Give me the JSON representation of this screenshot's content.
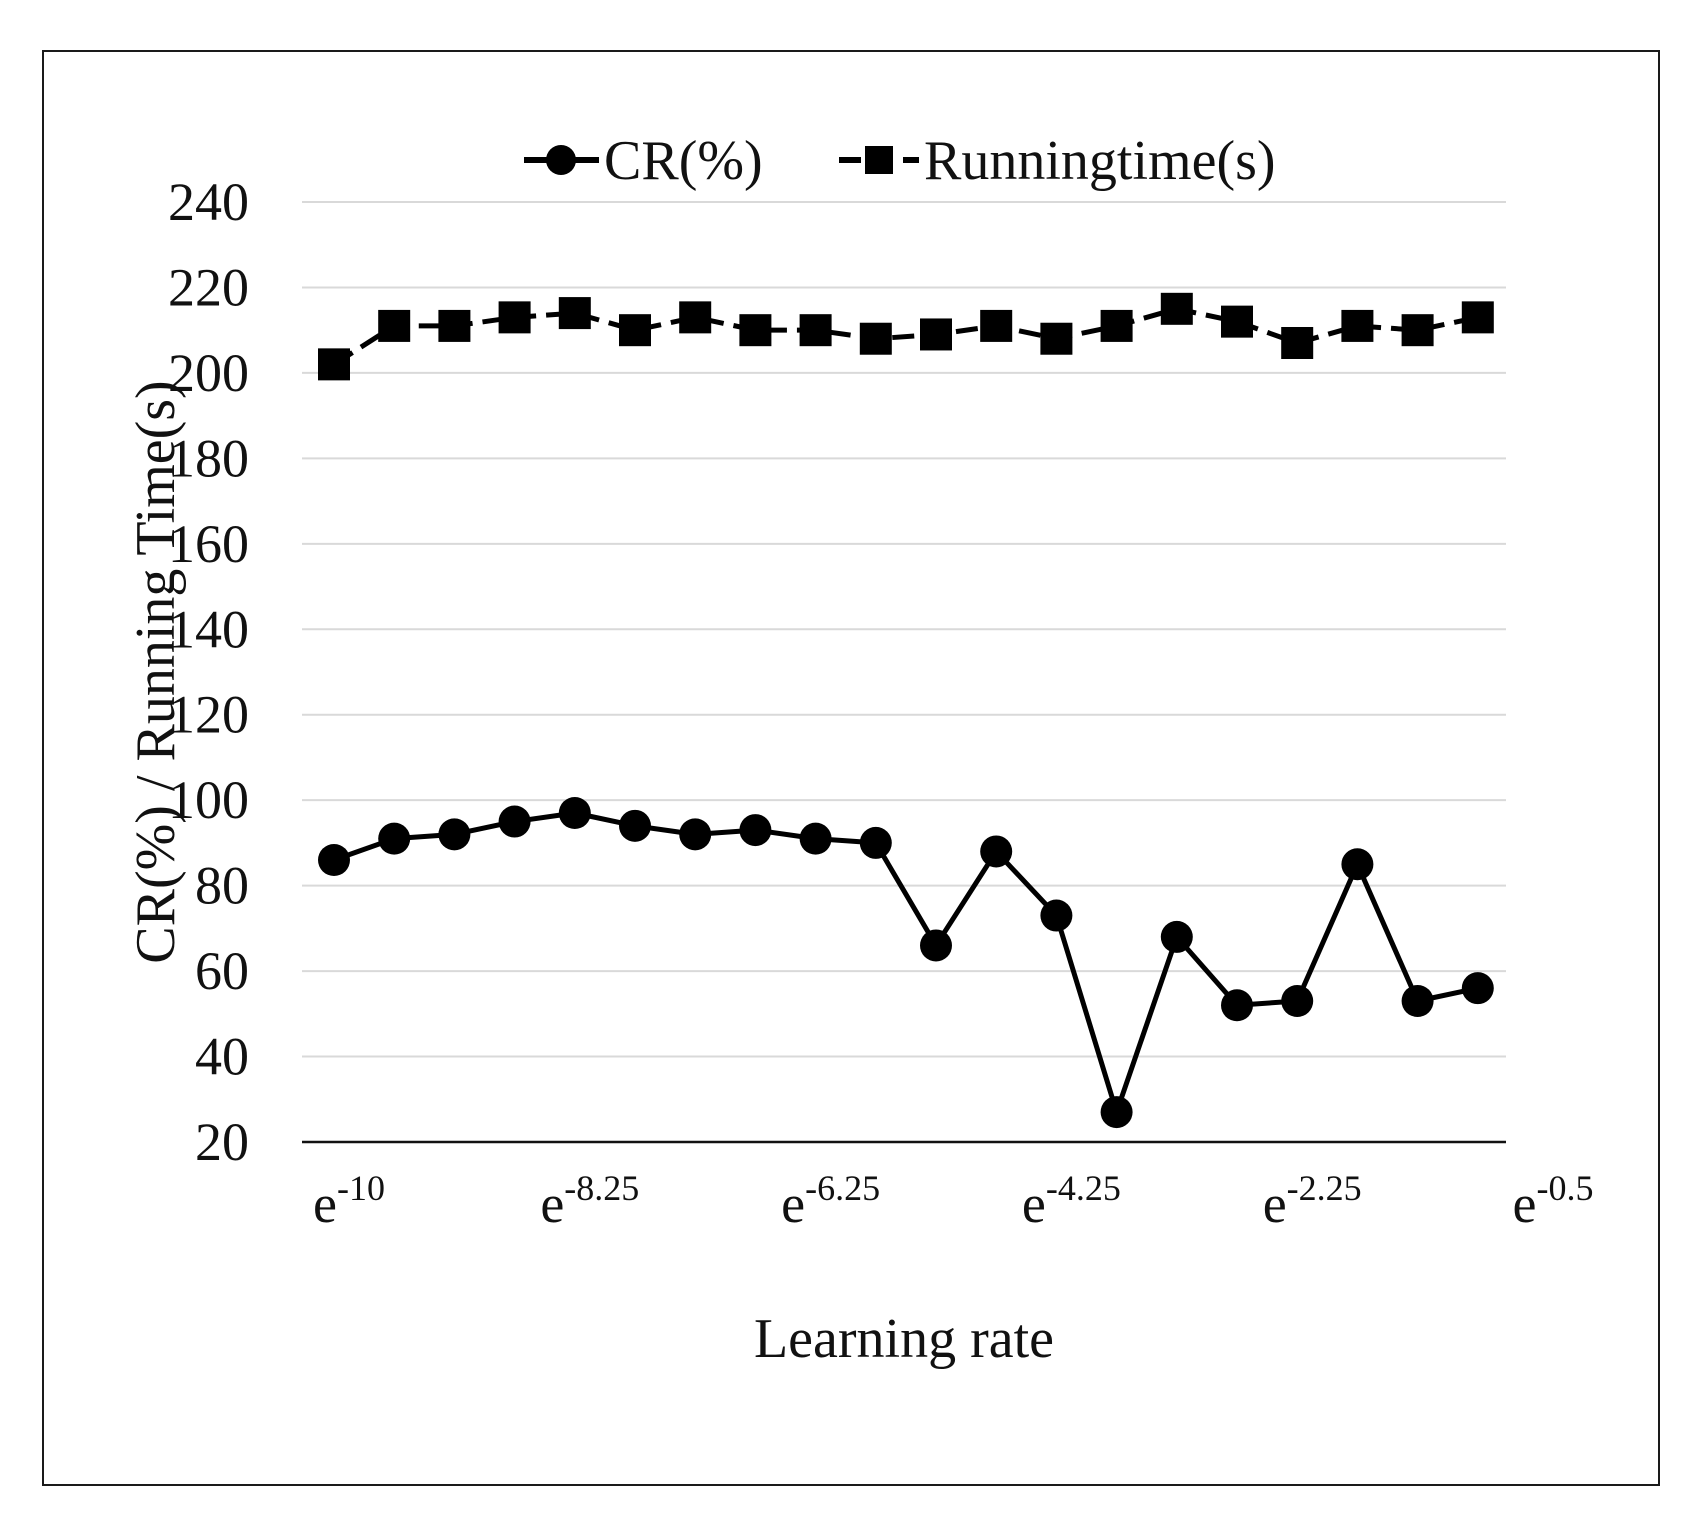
{
  "chart_data": {
    "type": "line",
    "title": "",
    "xlabel": "Learning rate",
    "ylabel": "CR(%) / Running Time(s)",
    "ylim": [
      20,
      240
    ],
    "yticks": [
      20,
      40,
      60,
      80,
      100,
      120,
      140,
      160,
      180,
      200,
      220,
      240
    ],
    "grid": true,
    "legend_position": "top-center",
    "x_tick_labels": [
      {
        "index": 0,
        "base": "e",
        "exponent": "-10"
      },
      {
        "index": 4,
        "base": "e",
        "exponent": "-8.25"
      },
      {
        "index": 8,
        "base": "e",
        "exponent": "-6.25"
      },
      {
        "index": 12,
        "base": "e",
        "exponent": "-4.25"
      },
      {
        "index": 16,
        "base": "e",
        "exponent": "-2.25"
      },
      {
        "index": 20,
        "base": "e",
        "exponent": "-0.5"
      }
    ],
    "series": [
      {
        "name": "CR(%)",
        "marker": "circle",
        "line_style": "solid",
        "color": "#000000",
        "values": [
          86,
          91,
          92,
          95,
          97,
          94,
          92,
          93,
          91,
          90,
          66,
          88,
          73,
          27,
          68,
          52,
          53,
          85,
          53,
          56
        ]
      },
      {
        "name": "Runningtime(s)",
        "marker": "square",
        "line_style": "dashed",
        "color": "#000000",
        "values": [
          202,
          211,
          211,
          213,
          214,
          210,
          213,
          210,
          210,
          208,
          209,
          211,
          208,
          211,
          215,
          212,
          207,
          211,
          210,
          213
        ]
      }
    ]
  }
}
